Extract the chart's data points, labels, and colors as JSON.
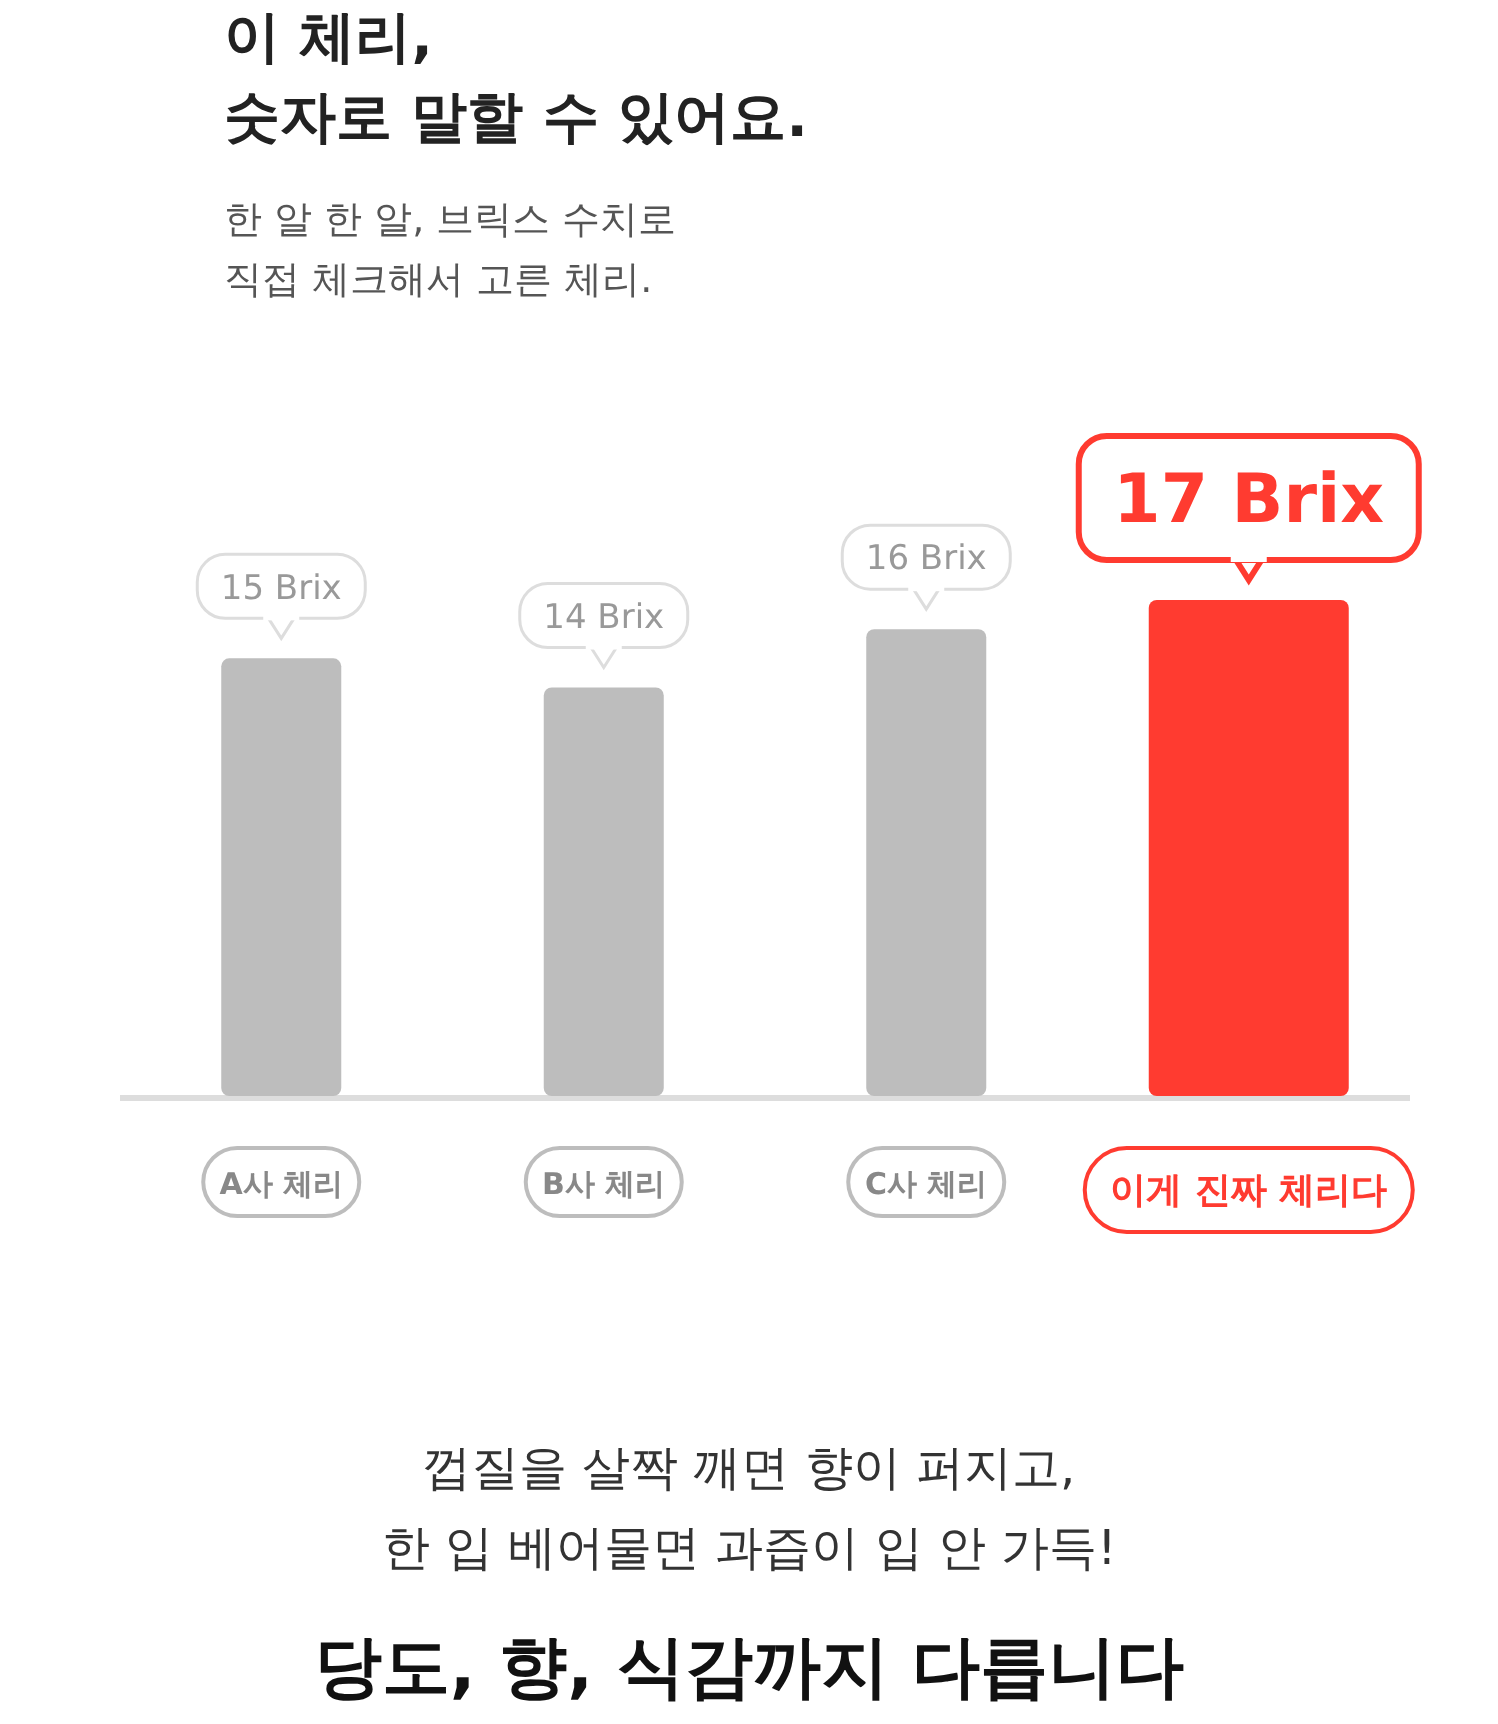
{
  "chart_data": {
    "type": "bar",
    "title": "이 체리,\n숫자로 말할 수 있어요.",
    "subtitle": "한 알 한 알, 브릭스 수치로\n직접 체크해서 고른 체리.",
    "categories": [
      "A사 체리",
      "B사 체리",
      "C사 체리",
      "이게 진짜 체리다"
    ],
    "values": [
      15,
      14,
      16,
      17
    ],
    "value_labels": [
      "15 Brix",
      "14 Brix",
      "16 Brix",
      "17 Brix"
    ],
    "colors": [
      "#bdbdbd",
      "#bdbdbd",
      "#bdbdbd",
      "#ff3b30"
    ],
    "annotations": [
      "껍질을 살짝 깨면 향이 퍼지고,\n한 입 베어물면 과즙이 입 안 가득!",
      "당도, 향, 식감까지 다릅니다"
    ]
  }
}
